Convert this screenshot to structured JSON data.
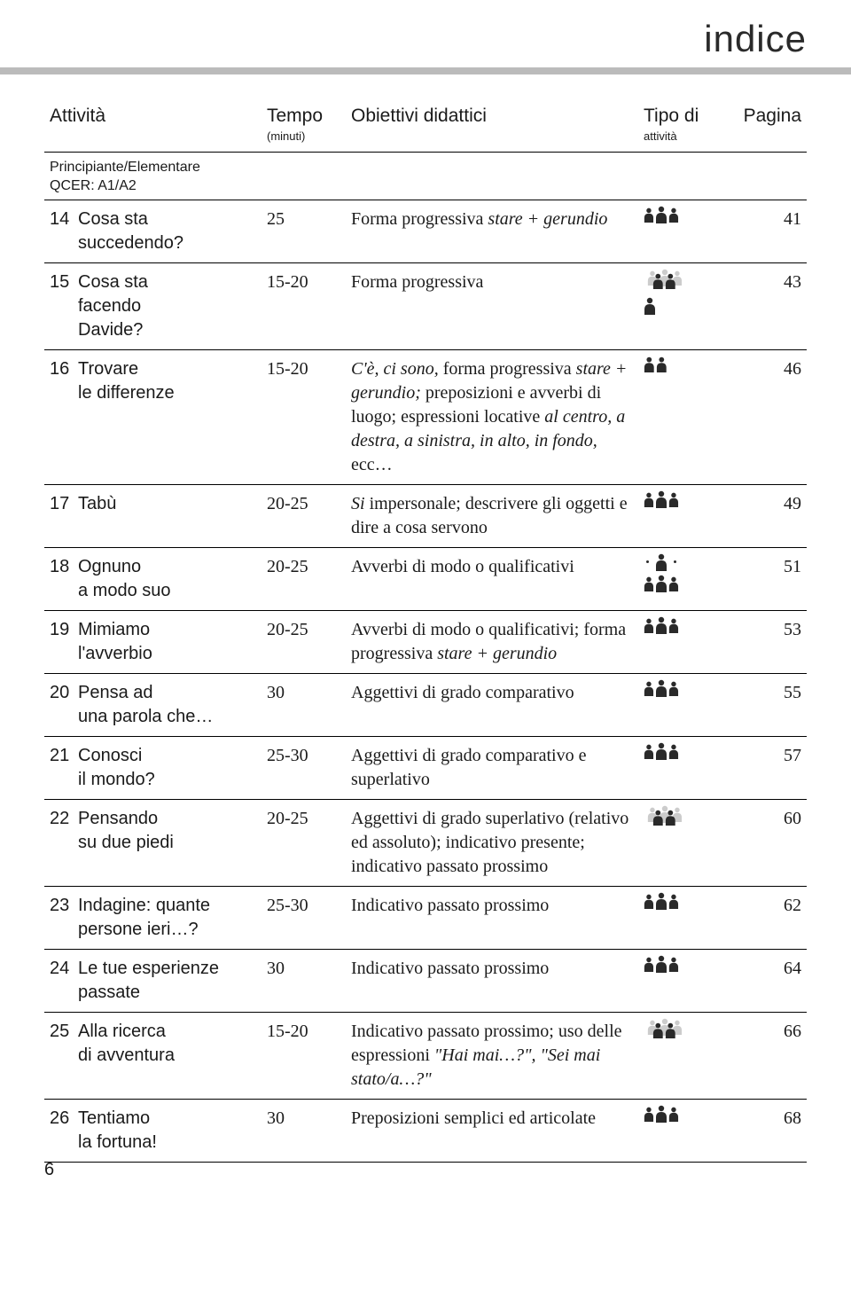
{
  "header": {
    "title": "indice"
  },
  "headers": {
    "activity": "Attività",
    "time": "Tempo",
    "time_sub": "(minuti)",
    "objectives": "Obiettivi didattici",
    "type": "Tipo di",
    "type_sub": "attività",
    "page": "Pagina"
  },
  "level_header": "Principiante/Elementare\nQCER: A1/A2",
  "rows": [
    {
      "num": "14",
      "name": "Cosa sta\nsuccedendo?",
      "time": "25",
      "obj_plain": "Forma progressiva",
      "obj_italic": " stare + gerundio",
      "icons": [
        [
          "group3"
        ]
      ],
      "page": "41"
    },
    {
      "num": "15",
      "name": "Cosa sta\nfacendo\nDavide?",
      "time": "15-20",
      "obj_plain": "Forma progressiva",
      "obj_italic": "",
      "icons": [
        [
          "group3light",
          "group2"
        ],
        [
          "solo"
        ]
      ],
      "page": "43"
    },
    {
      "num": "16",
      "name": "Trovare\nle differenze",
      "time": "15-20",
      "obj_html": "<span class='italic'>C'è, ci sono,</span> forma progressiva <span class='italic'>stare + gerundio;</span> preposizioni e avverbi di luogo; espressioni locative <span class='italic'>al centro, a destra, a sinistra, in alto, in fondo,</span> ecc…",
      "icons": [
        [
          "group2"
        ]
      ],
      "page": "46"
    },
    {
      "num": "17",
      "name": "Tabù",
      "time": "20-25",
      "obj_html": "<span class='italic'>Si</span> impersonale; descrivere gli oggetti e dire a cosa servono",
      "icons": [
        [
          "group3"
        ]
      ],
      "page": "49"
    },
    {
      "num": "18",
      "name": "Ognuno\na modo suo",
      "time": "20-25",
      "obj_plain": "Avverbi di modo o qualificativi",
      "obj_italic": "",
      "icons": [
        [
          "solo-dots"
        ],
        [
          "group3"
        ]
      ],
      "page": "51"
    },
    {
      "num": "19",
      "name": "Mimiamo\nl'avverbio",
      "time": "20-25",
      "obj_html": "Avverbi di modo o qualificativi; forma progressiva <span class='italic'>stare + gerundio</span>",
      "icons": [
        [
          "group3"
        ]
      ],
      "page": "53"
    },
    {
      "num": "20",
      "name": "Pensa ad\nuna parola che…",
      "time": "30",
      "obj_plain": "Aggettivi di grado comparativo",
      "obj_italic": "",
      "icons": [
        [
          "group3"
        ]
      ],
      "page": "55"
    },
    {
      "num": "21",
      "name": "Conosci\nil mondo?",
      "time": "25-30",
      "obj_plain": "Aggettivi di grado comparativo e superlativo",
      "obj_italic": "",
      "icons": [
        [
          "group3"
        ]
      ],
      "page": "57"
    },
    {
      "num": "22",
      "name": "Pensando\nsu due piedi",
      "time": "20-25",
      "obj_plain": "Aggettivi di grado superlativo (relativo ed assoluto); indicativo presente; indicativo passato prossimo",
      "obj_italic": "",
      "icons": [
        [
          "group3light",
          "group2"
        ]
      ],
      "page": "60"
    },
    {
      "num": "23",
      "name": "Indagine: quante\npersone ieri…?",
      "time": "25-30",
      "obj_plain": "Indicativo passato prossimo",
      "obj_italic": "",
      "icons": [
        [
          "group3"
        ]
      ],
      "page": "62"
    },
    {
      "num": "24",
      "name": "Le tue esperienze\npassate",
      "time": "30",
      "obj_plain": "Indicativo passato prossimo",
      "obj_italic": "",
      "icons": [
        [
          "group3"
        ]
      ],
      "page": "64"
    },
    {
      "num": "25",
      "name": "Alla ricerca\ndi avventura",
      "time": "15-20",
      "obj_html": "Indicativo passato prossimo; uso delle espressioni <span class='italic'>\"Hai mai…?\", \"Sei mai stato/a…?\"</span>",
      "icons": [
        [
          "group3light",
          "group2"
        ]
      ],
      "page": "66"
    },
    {
      "num": "26",
      "name": "Tentiamo\nla fortuna!",
      "time": "30",
      "obj_plain": "Preposizioni semplici ed articolate",
      "obj_italic": "",
      "icons": [
        [
          "group3"
        ]
      ],
      "page": "68"
    }
  ],
  "footer": {
    "page_num": "6"
  },
  "colors": {
    "rule": "#bbbbbb",
    "icon_dark": "#2a2a2a",
    "icon_light": "#cccccc"
  }
}
